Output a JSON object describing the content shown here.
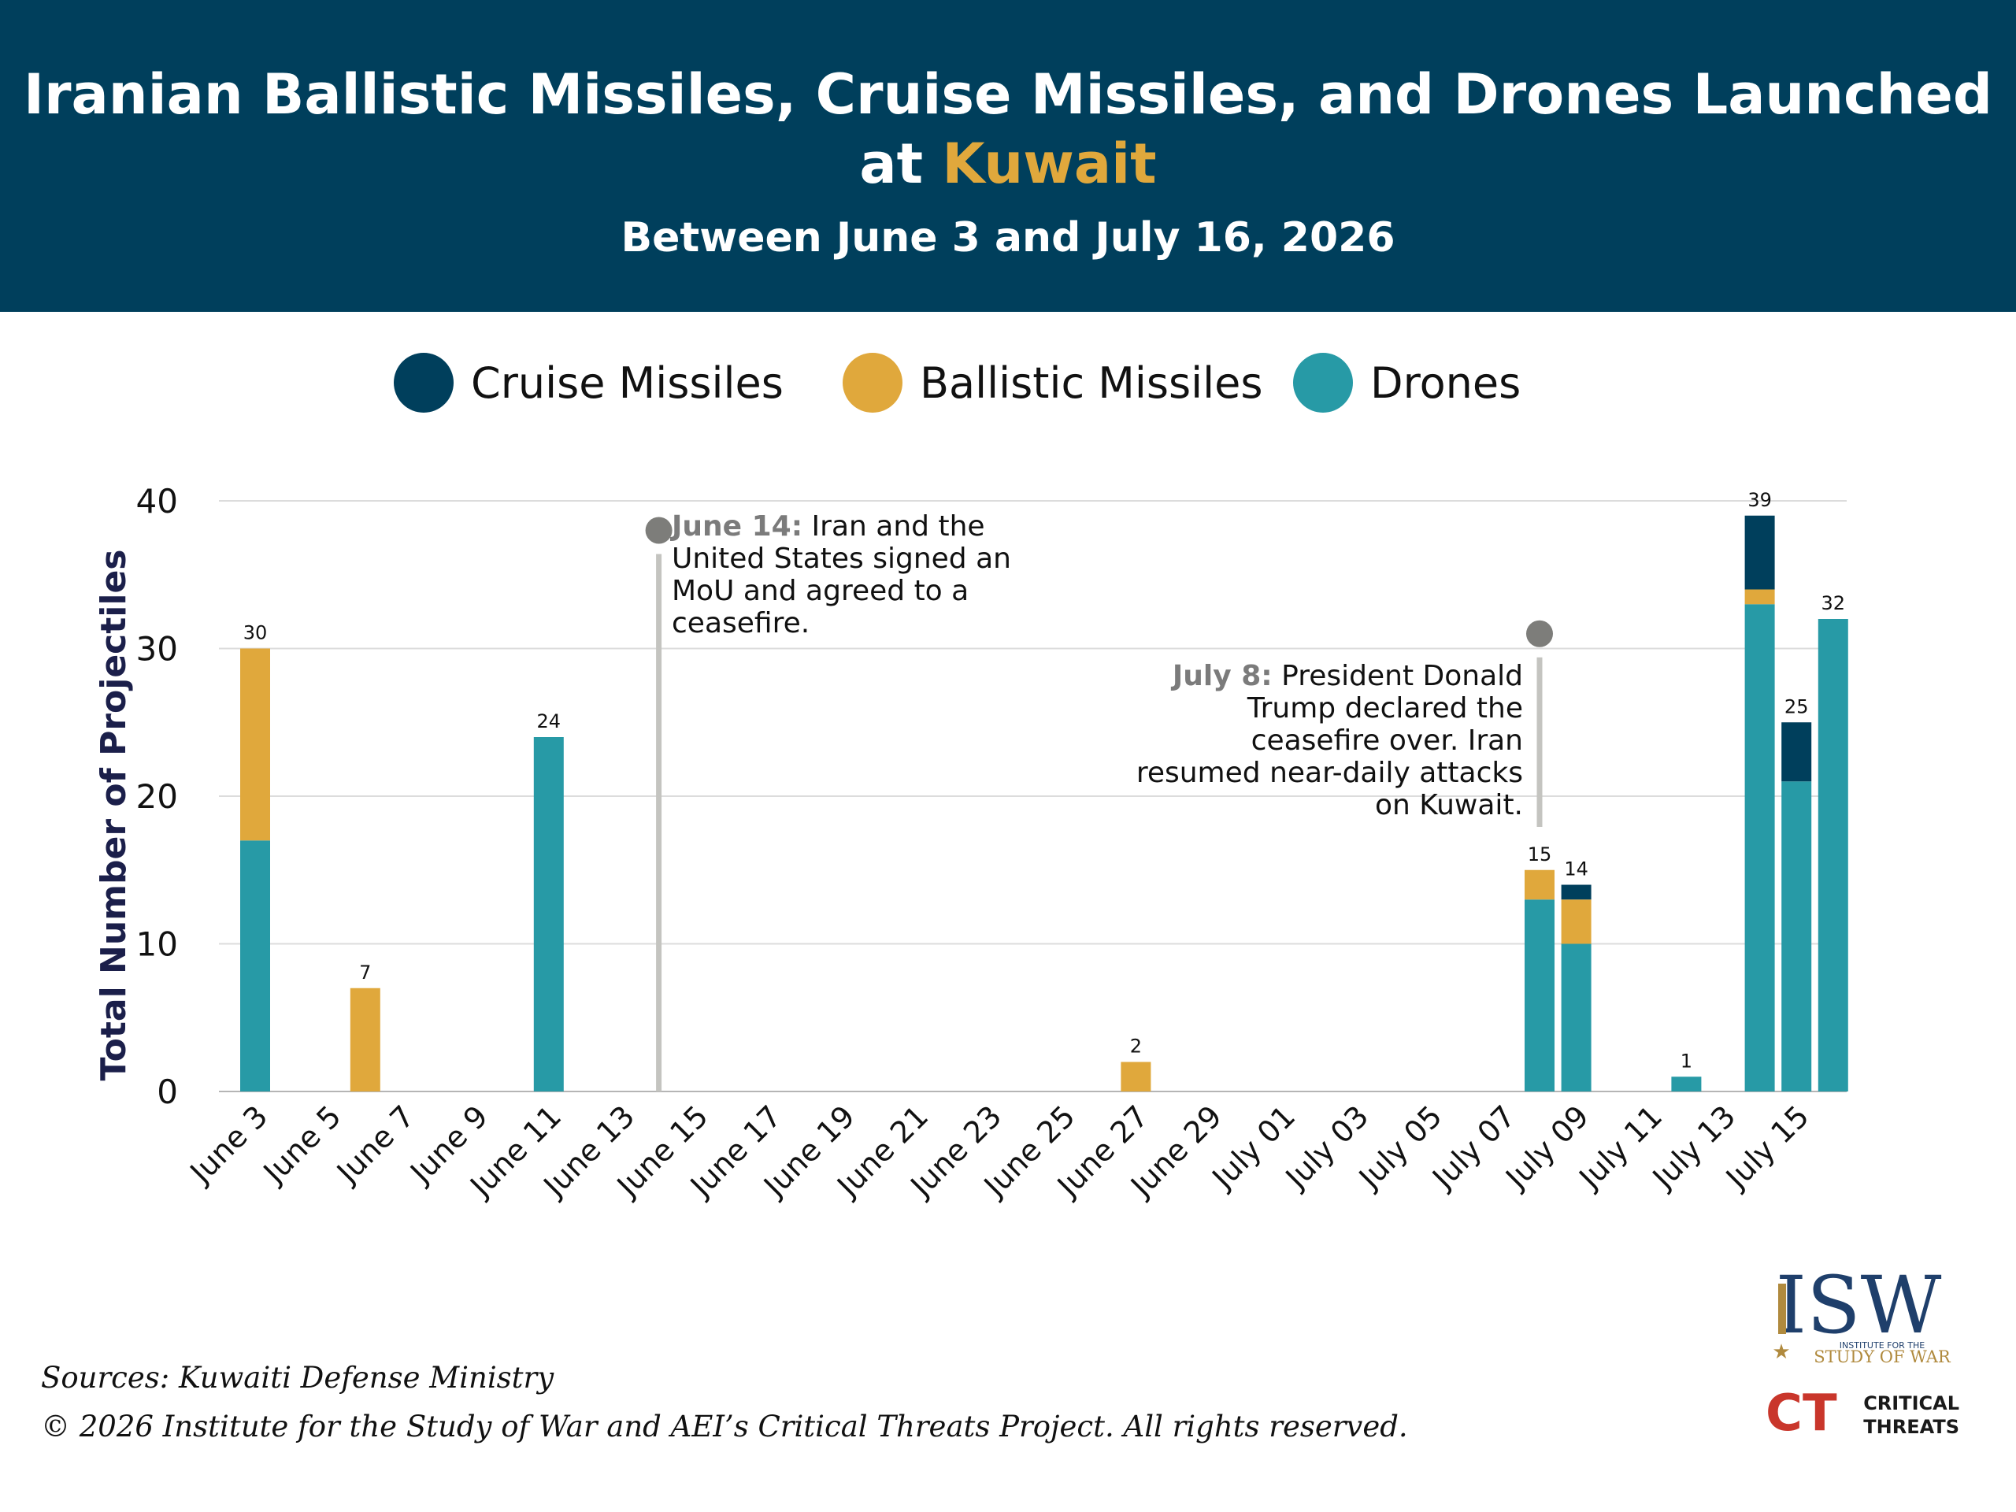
{
  "header": {
    "title_line1": "Iranian Ballistic Missiles, Cruise Missiles, and Drones Launched",
    "title_line2_prefix": "at ",
    "title_line2_highlight": "Kuwait",
    "subtitle": "Between June 3 and July 16, 2026"
  },
  "legend": [
    {
      "label": "Cruise Missiles",
      "color": "#003f5c"
    },
    {
      "label": "Ballistic Missiles",
      "color": "#e0a83c"
    },
    {
      "label": "Drones",
      "color": "#279aa6"
    }
  ],
  "chart_data": {
    "type": "bar",
    "stacked": true,
    "ylabel": "Total Number of Projectiles",
    "xlabel": "",
    "ylim": [
      0,
      40
    ],
    "yticks": [
      0,
      10,
      20,
      30,
      40
    ],
    "grid": true,
    "x_tick_labels": [
      "June 3",
      "June 5",
      "June 7",
      "June 9",
      "June 11",
      "June 13",
      "June 15",
      "June 17",
      "June 19",
      "June 21",
      "June 23",
      "June 25",
      "June 27",
      "June 29",
      "July 01",
      "July 03",
      "July 05",
      "July 07",
      "July 09",
      "July 11",
      "July 13",
      "July 15"
    ],
    "categories": [
      "June 3",
      "June 4",
      "June 5",
      "June 6",
      "June 7",
      "June 8",
      "June 9",
      "June 10",
      "June 11",
      "June 12",
      "June 13",
      "June 14",
      "June 15",
      "June 16",
      "June 17",
      "June 18",
      "June 19",
      "June 20",
      "June 21",
      "June 22",
      "June 23",
      "June 24",
      "June 25",
      "June 26",
      "June 27",
      "June 28",
      "June 29",
      "June 30",
      "July 01",
      "July 02",
      "July 03",
      "July 04",
      "July 05",
      "July 06",
      "July 07",
      "July 08",
      "July 09",
      "July 10",
      "July 11",
      "July 12",
      "July 13",
      "July 14",
      "July 15",
      "July 16"
    ],
    "series": [
      {
        "name": "Drones",
        "color": "#279aa6",
        "values": [
          17,
          0,
          0,
          0,
          0,
          0,
          0,
          0,
          24,
          0,
          0,
          0,
          0,
          0,
          0,
          0,
          0,
          0,
          0,
          0,
          0,
          0,
          0,
          0,
          0,
          0,
          0,
          0,
          0,
          0,
          0,
          0,
          0,
          0,
          0,
          13,
          10,
          0,
          0,
          1,
          0,
          33,
          21,
          32
        ]
      },
      {
        "name": "Ballistic Missiles",
        "color": "#e0a83c",
        "values": [
          13,
          0,
          0,
          7,
          0,
          0,
          0,
          0,
          0,
          0,
          0,
          0,
          0,
          0,
          0,
          0,
          0,
          0,
          0,
          0,
          0,
          0,
          0,
          0,
          2,
          0,
          0,
          0,
          0,
          0,
          0,
          0,
          0,
          0,
          0,
          2,
          3,
          0,
          0,
          0,
          0,
          1,
          0,
          0
        ]
      },
      {
        "name": "Cruise Missiles",
        "color": "#003f5c",
        "values": [
          0,
          0,
          0,
          0,
          0,
          0,
          0,
          0,
          0,
          0,
          0,
          0,
          0,
          0,
          0,
          0,
          0,
          0,
          0,
          0,
          0,
          0,
          0,
          0,
          0,
          0,
          0,
          0,
          0,
          0,
          0,
          0,
          0,
          0,
          0,
          0,
          1,
          0,
          0,
          0,
          0,
          5,
          4,
          0
        ]
      }
    ],
    "total_labels": {
      "June 3": "30",
      "June 6": "7",
      "June 11": "24",
      "June 27": "2",
      "July 08": "15",
      "July 09": "14",
      "July 12": "1",
      "July 14": "39",
      "July 15": "25",
      "July 16": "32"
    },
    "annotations": [
      {
        "date": "June 14",
        "marker_y": 38,
        "date_label": "June 14:",
        "text": " Iran and the United States signed an MoU and agreed to a ceasefire."
      },
      {
        "date": "July 08",
        "marker_y": 31,
        "date_label": "July 8:",
        "text": " President Donald Trump declared the ceasefire over. Iran resumed near-daily attacks on Kuwait."
      }
    ]
  },
  "footer": {
    "sources": "Sources: Kuwaiti Defense Ministry",
    "copyright": "© 2026 Institute for the Study of War and AEI’s Critical Threats Project. All rights reserved."
  },
  "logos": {
    "isw_main": "ISW",
    "isw_sub1": "INSTITUTE FOR THE",
    "isw_sub2": "STUDY OF WAR",
    "ct_mark": "CT",
    "ct_line1": "CRITICAL",
    "ct_line2": "THREATS"
  }
}
